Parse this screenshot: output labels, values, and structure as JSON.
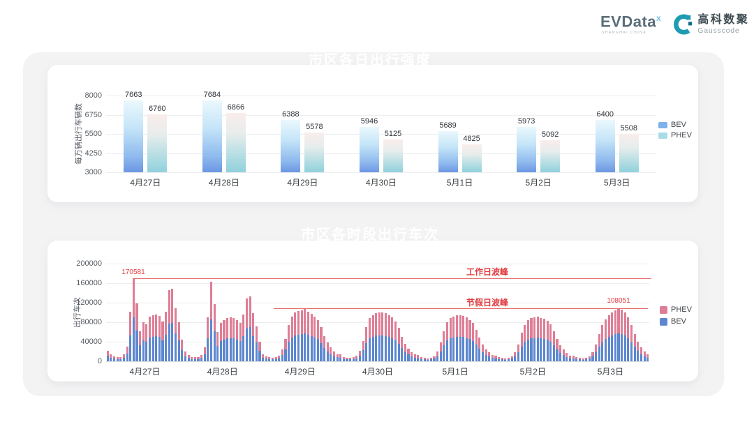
{
  "header": {
    "evdata_brand": "EVData",
    "evdata_sup": "x",
    "evdata_sub": "SHANGHAI CHINA",
    "gausscode_cn": "高科数聚",
    "gausscode_en": "Gausscode"
  },
  "colors": {
    "banner_blue": "#1030f1",
    "bev_blue": "#5d87cf",
    "phev_pink": "#de7e96",
    "annotation_red": "#e23c40",
    "peak_line_red": "#e57070",
    "panel_gray": "#f3f3f4",
    "legend_bev_swatch": "#7fb1ea",
    "legend_phev_swatch": "#a9dce6"
  },
  "chart_data": [
    {
      "id": "daily-intensity",
      "type": "bar",
      "title": "市区各日出行强度",
      "ylabel": "每万辆出行车辆数",
      "categories": [
        "4月27日",
        "4月28日",
        "4月29日",
        "4月30日",
        "5月1日",
        "5月2日",
        "5月3日"
      ],
      "series": [
        {
          "name": "BEV",
          "values": [
            7663,
            7684,
            6388,
            5946,
            5689,
            5973,
            6400
          ]
        },
        {
          "name": "PHEV",
          "values": [
            6760,
            6866,
            5578,
            5125,
            4825,
            5092,
            5508
          ]
        }
      ],
      "ylim": [
        3000,
        8000
      ],
      "yticks": [
        3000,
        4250,
        5500,
        6750,
        8000
      ],
      "grid": true,
      "legend_position": "right"
    },
    {
      "id": "hourly-trips",
      "type": "bar-stacked",
      "title": "市区各时段出行车次",
      "ylabel": "出行车次",
      "categories": [
        "4月27日",
        "4月28日",
        "4月29日",
        "4月30日",
        "5月1日",
        "5月2日",
        "5月3日"
      ],
      "hours_per_day": 24,
      "ylim": [
        0,
        200000
      ],
      "yticks": [
        0,
        40000,
        80000,
        120000,
        160000,
        200000
      ],
      "grid": true,
      "legend": [
        "PHEV",
        "BEV"
      ],
      "annotations": {
        "weekday_peak": {
          "label": "工作日波峰",
          "value": 170581,
          "value_label": "170581",
          "line_start_day": 0,
          "line_start_hour": 8
        },
        "holiday_peak": {
          "label": "节假日波峰",
          "value": 108051,
          "value_label": "108051",
          "peak_day": 6,
          "peak_hour": 14
        }
      },
      "days": [
        {
          "date": "4月27日",
          "bev": [
            11700,
            7400,
            5300,
            4200,
            4800,
            7400,
            15900,
            53500,
            90400,
            63100,
            32900,
            42400,
            40300,
            48200,
            50400,
            50900,
            49300,
            42900,
            54100,
            77400,
            79000,
            57200,
            42400,
            23300
          ],
          "phev": [
            10300,
            6600,
            4700,
            3800,
            4200,
            6600,
            14100,
            47500,
            80181,
            55900,
            29100,
            37600,
            35700,
            42800,
            44600,
            45100,
            43700,
            38100,
            47900,
            68600,
            70000,
            50800,
            37600,
            20700
          ]
        },
        {
          "date": "4月28日",
          "bev": [
            10600,
            6900,
            4800,
            4200,
            4800,
            6900,
            14800,
            47700,
            86400,
            62000,
            31800,
            41300,
            44500,
            46600,
            47700,
            46600,
            44500,
            41300,
            50900,
            67800,
            70500,
            51900,
            38200,
            21200
          ],
          "phev": [
            9400,
            6100,
            4200,
            3800,
            4200,
            6100,
            13200,
            42300,
            76600,
            55000,
            28200,
            36700,
            39500,
            41400,
            42300,
            41400,
            39500,
            36700,
            45100,
            60200,
            62500,
            46100,
            33800,
            18800
          ]
        },
        {
          "date": "4月29日",
          "bev": [
            7400,
            5300,
            4200,
            3700,
            4200,
            6400,
            12700,
            24400,
            39800,
            48800,
            53000,
            54600,
            55100,
            57200,
            54100,
            51400,
            48800,
            45100,
            37100,
            27600,
            20100,
            14800,
            10600,
            8000
          ],
          "phev": [
            6600,
            4700,
            3800,
            3300,
            3800,
            5600,
            11300,
            21600,
            35200,
            43200,
            47000,
            48400,
            48900,
            50800,
            47900,
            45600,
            43200,
            39900,
            32900,
            24400,
            17900,
            13200,
            9400,
            7000
          ]
        },
        {
          "date": "4月30日",
          "bev": [
            7400,
            4800,
            3700,
            3700,
            4200,
            5800,
            11700,
            22300,
            37100,
            46600,
            50400,
            52500,
            53000,
            53000,
            51900,
            50400,
            47700,
            43500,
            36000,
            26500,
            19100,
            13800,
            10100,
            7400
          ],
          "phev": [
            6600,
            4200,
            3300,
            3300,
            3800,
            5200,
            10300,
            19700,
            32900,
            41400,
            44600,
            46500,
            47000,
            47000,
            46100,
            44600,
            42300,
            38500,
            32000,
            23500,
            16900,
            12200,
            8900,
            6600
          ]
        },
        {
          "date": "5月1日",
          "bev": [
            6900,
            4800,
            3700,
            3200,
            3700,
            5300,
            10600,
            20100,
            32900,
            42400,
            46600,
            48800,
            49800,
            50400,
            49300,
            47700,
            45100,
            41300,
            33900,
            25400,
            18000,
            13300,
            9500,
            6900
          ],
          "phev": [
            6100,
            4200,
            3300,
            2800,
            3300,
            4700,
            9400,
            17900,
            29100,
            37600,
            41400,
            43200,
            44200,
            44600,
            43700,
            42300,
            39900,
            36700,
            30100,
            22600,
            16000,
            11700,
            8500,
            6100
          ]
        },
        {
          "date": "5月2日",
          "bev": [
            6400,
            4200,
            3700,
            3200,
            3700,
            5300,
            9500,
            18600,
            30700,
            39800,
            44500,
            46600,
            47700,
            48200,
            47200,
            46100,
            44000,
            40300,
            32900,
            24400,
            17500,
            12700,
            9000,
            6400
          ],
          "phev": [
            5600,
            3800,
            3300,
            2800,
            3300,
            4700,
            8500,
            16400,
            27300,
            35200,
            39500,
            41400,
            42300,
            42800,
            41800,
            40900,
            39000,
            35700,
            29100,
            21600,
            15500,
            11300,
            8000,
            5600
          ]
        },
        {
          "date": "5月3日",
          "bev": [
            6400,
            4200,
            3700,
            3200,
            3700,
            5300,
            9500,
            18000,
            29700,
            39200,
            45600,
            49800,
            53000,
            55100,
            57300,
            56200,
            53000,
            47700,
            39200,
            29700,
            21200,
            14800,
            10600,
            7400
          ],
          "phev": [
            5600,
            3800,
            3300,
            2800,
            3300,
            4700,
            8500,
            16000,
            26300,
            34800,
            40400,
            44200,
            47000,
            48900,
            50751,
            49800,
            47000,
            42300,
            34800,
            26300,
            18800,
            13200,
            9400,
            6600
          ]
        }
      ]
    }
  ]
}
